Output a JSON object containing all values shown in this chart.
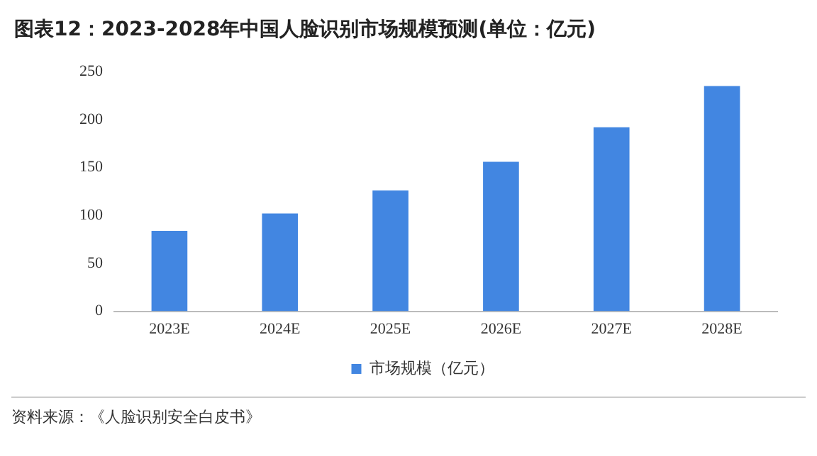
{
  "chart_data": {
    "type": "bar",
    "title": "图表12：2023-2028年中国人脸识别市场规模预测(单位：亿元)",
    "categories": [
      "2023E",
      "2024E",
      "2025E",
      "2026E",
      "2027E",
      "2028E"
    ],
    "series": [
      {
        "name": "市场规模（亿元）",
        "color": "#4286e1",
        "values": [
          84,
          102,
          126,
          156,
          192,
          235
        ]
      }
    ],
    "ylim": [
      0,
      250
    ],
    "yticks": [
      0,
      50,
      100,
      150,
      200,
      250
    ],
    "grid": false,
    "legend": "bottom",
    "annotations": [
      "资料来源：《人脸识别安全白皮书》"
    ]
  }
}
